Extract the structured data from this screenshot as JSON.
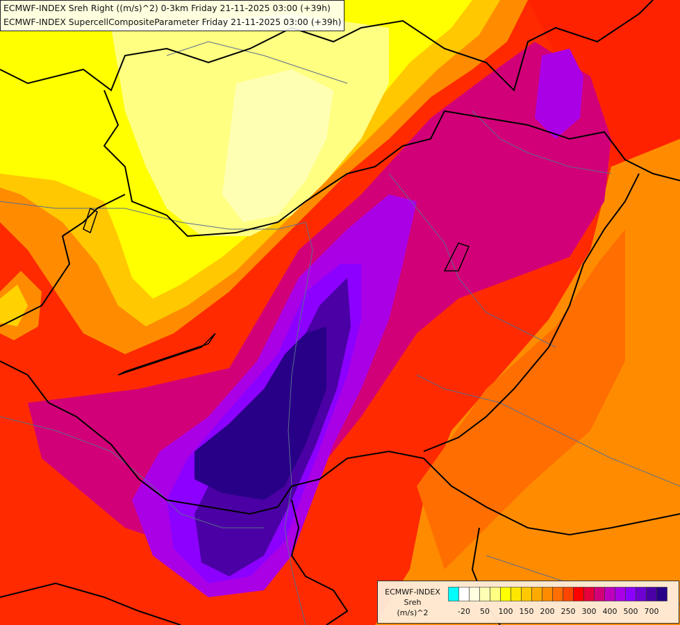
{
  "header": {
    "line1": "ECMWF-INDEX Sreh Right ((m/s)^2) 0-3km Friday 21-11-2025 03:00 (+39h)",
    "line2": "ECMWF-INDEX SupercellCompositeParameter Friday 21-11-2025 03:00 (+39h)"
  },
  "legend": {
    "title_line1": "ECMWF-INDEX",
    "title_line2": "Sreh",
    "title_line3": "(m/s)^2",
    "colors": [
      "#00ffff",
      "#ffffff",
      "#ffffe0",
      "#ffffb4",
      "#ffff82",
      "#ffff00",
      "#ffe600",
      "#ffc800",
      "#ffaa00",
      "#ff8c00",
      "#ff6e00",
      "#ff4600",
      "#ff0000",
      "#e6003c",
      "#d20078",
      "#be00be",
      "#aa00e6",
      "#8c00ff",
      "#6e00d2",
      "#4b00a5",
      "#280087"
    ],
    "tick_labels": [
      "-20",
      "50",
      "100",
      "150",
      "200",
      "250",
      "300",
      "400",
      "500",
      "700"
    ]
  },
  "map": {
    "field_colors": {
      "orange": "#ff8c00",
      "red_orange": "#ff4600",
      "red": "#ff0000",
      "magenta": "#d20078",
      "violet": "#aa00e6",
      "purple": "#8c00ff",
      "indigo": "#4b00a5",
      "navy": "#280087",
      "yellow": "#ffff00",
      "pale_yellow": "#ffffb4"
    },
    "border_color": "#000000",
    "river_color": "#5a6e8c"
  }
}
